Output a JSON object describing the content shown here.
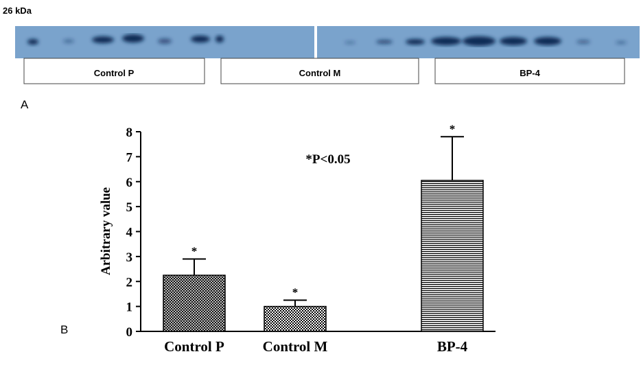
{
  "blot": {
    "marker": "26 kDa",
    "groups": [
      "Control P",
      "Control M",
      "BP-4"
    ]
  },
  "panel_labels": [
    "A",
    "B"
  ],
  "chart_data": {
    "type": "bar",
    "y_label": "Arbitrary value",
    "annotation": "*P<0.05",
    "categories": [
      "Control P",
      "Control M",
      "BP-4"
    ],
    "values": [
      2.25,
      1.0,
      6.05
    ],
    "errors": [
      0.65,
      0.25,
      1.75
    ],
    "value_labels": [
      "*",
      "*",
      "*"
    ],
    "patterns": [
      "crosshatch",
      "checker",
      "hlines"
    ],
    "color": "#000000",
    "ylim": [
      0,
      8
    ],
    "yticks": [
      0,
      1,
      2,
      3,
      4,
      5,
      6,
      7,
      8
    ]
  }
}
